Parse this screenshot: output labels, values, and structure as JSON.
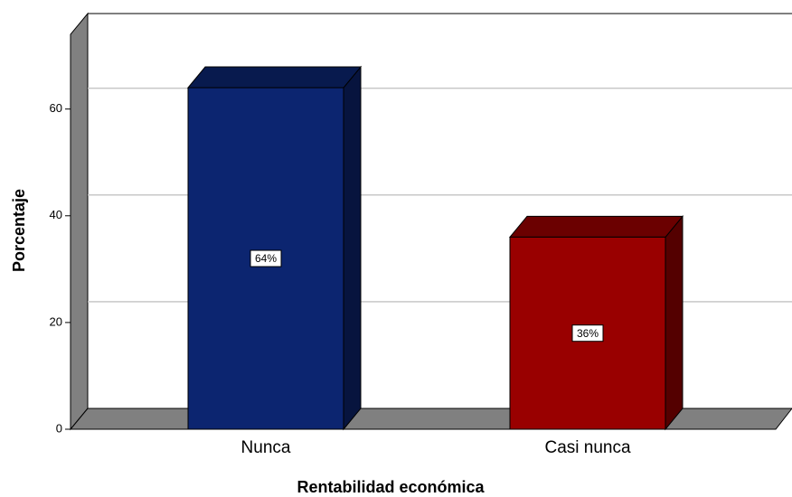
{
  "chart_data": {
    "type": "bar3d",
    "x_label": "Rentabilidad económica",
    "y_label": "Porcentaje",
    "categories": [
      "Nunca",
      "Casi nunca"
    ],
    "values": [
      64,
      36
    ],
    "value_labels": [
      "64%",
      "36%"
    ],
    "colors": [
      "#0c2570",
      "#990000"
    ],
    "ylim": [
      0,
      74
    ],
    "yticks": [
      0,
      20,
      40,
      60
    ],
    "grid": true
  }
}
